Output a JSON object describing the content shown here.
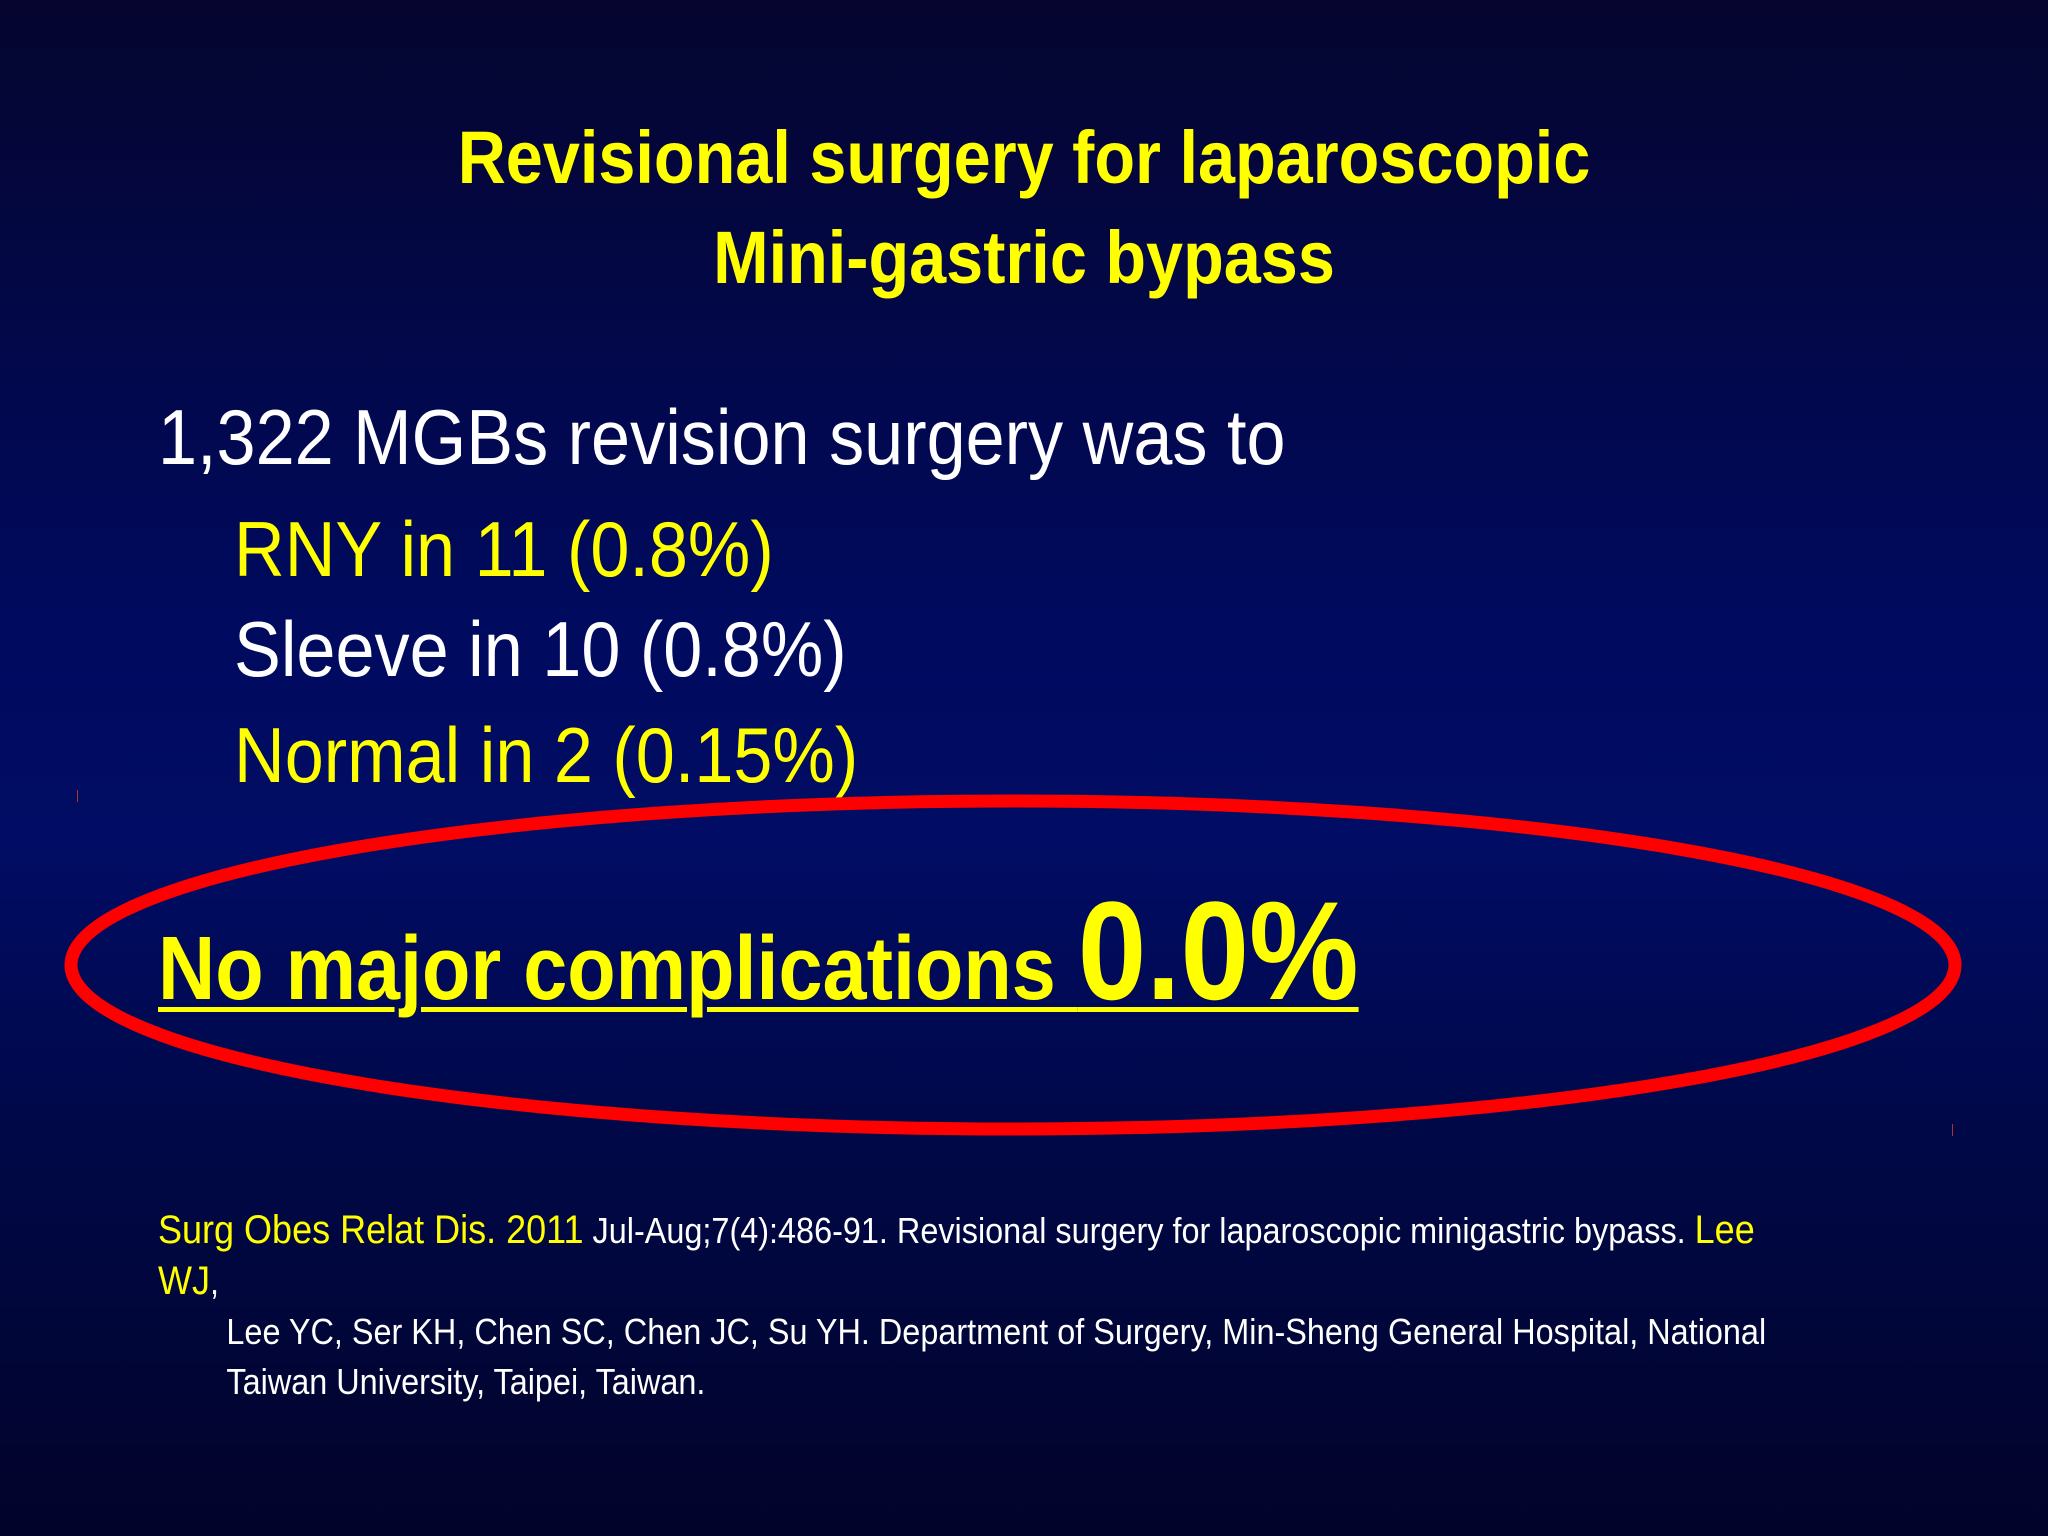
{
  "slide": {
    "title_line1": "Revisional surgery for laparoscopic",
    "title_line2": "Mini-gastric bypass",
    "intro": "1,322 MGBs revision surgery was to",
    "items": [
      {
        "text": "RNY in 11 (0.8%)",
        "color": "#ffff00"
      },
      {
        "text": "Sleeve in 10  (0.8%)",
        "color": "#ffffff"
      },
      {
        "text": "Normal in 2 (0.15%)",
        "color": "#ffff00"
      }
    ],
    "highlight_text": "No major complications ",
    "highlight_value": "0.0%",
    "highlight_ring_color": "#ff0000",
    "citation": {
      "journal": "Surg Obes Relat Dis. 2011",
      "details": " Jul-Aug;7(4):486-91. Revisional surgery for laparoscopic minigastric bypass. ",
      "lead_author": "Lee WJ",
      "rest_line1": ",",
      "rest_line2": "Lee YC, Ser KH, Chen SC, Chen JC, Su YH. Department of Surgery, Min-Sheng General Hospital, National",
      "rest_line3": "Taiwan University, Taipei, Taiwan."
    }
  }
}
